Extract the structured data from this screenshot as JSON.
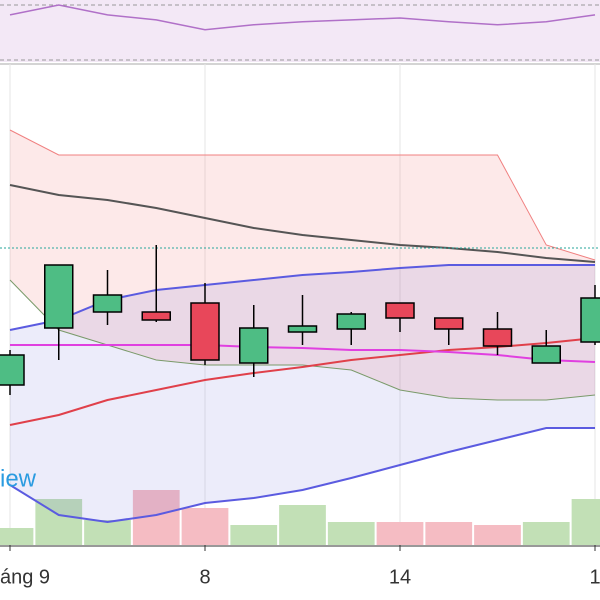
{
  "chart_data": {
    "type": "candlestick",
    "categories": [
      "áng 9",
      null,
      null,
      null,
      "8",
      null,
      null,
      null,
      "14",
      null,
      null,
      null,
      "1"
    ],
    "watermark": "iew",
    "ylim": [
      0,
      480
    ],
    "open": [
      160,
      217,
      233,
      233,
      242,
      182,
      213,
      216,
      242,
      227,
      216,
      182,
      203
    ],
    "close": [
      190,
      280,
      250,
      225,
      185,
      217,
      219,
      231,
      227,
      216,
      199,
      199,
      247
    ],
    "high": [
      195,
      280,
      275,
      300,
      262,
      240,
      250,
      233,
      242,
      227,
      233,
      215,
      260
    ],
    "low": [
      150,
      185,
      220,
      223,
      180,
      168,
      200,
      200,
      213,
      200,
      190,
      182,
      200
    ],
    "volume": [
      17,
      46,
      25,
      55,
      37,
      20,
      40,
      23,
      23,
      23,
      20,
      23,
      46
    ],
    "up_color": "#4ebd84",
    "down_color": "#e8475a",
    "volume_up_color": "#c2e0b6",
    "volume_down_color": "#f5bcc3",
    "hline": 297,
    "hline_color": "#26a69a",
    "bands": [
      {
        "color": "#5b5be0",
        "values": [
          215,
          225,
          245,
          255,
          260,
          265,
          270,
          273,
          277,
          280,
          280,
          280,
          280
        ]
      },
      {
        "color": "#5b5be0",
        "values": [
          60,
          30,
          23,
          30,
          42,
          47,
          55,
          67,
          80,
          93,
          105,
          117,
          117
        ]
      }
    ],
    "band_fill": "rgba(110,110,220,0.13)",
    "cloud": [
      {
        "color": "#f08080",
        "values": [
          415,
          390,
          390,
          390,
          390,
          390,
          390,
          390,
          390,
          390,
          390,
          300,
          285
        ]
      },
      {
        "color": "#7a9a6a",
        "values": [
          265,
          215,
          200,
          185,
          180,
          180,
          180,
          175,
          155,
          147,
          145,
          145,
          150
        ]
      }
    ],
    "cloud_fill": "rgba(240,110,110,0.15)",
    "series": [
      {
        "color": "#e0404a",
        "values": [
          120,
          130,
          145,
          155,
          165,
          172,
          178,
          185,
          190,
          195,
          198,
          202,
          207
        ]
      },
      {
        "color": "#e040e0",
        "values": [
          200,
          200,
          200,
          200,
          200,
          198,
          197,
          195,
          195,
          193,
          190,
          185,
          183
        ]
      },
      {
        "color": "#555555",
        "values": [
          360,
          350,
          345,
          337,
          327,
          317,
          310,
          305,
          300,
          297,
          293,
          287,
          283
        ]
      }
    ],
    "oscillator": {
      "ylim": [
        0,
        100
      ],
      "color": "#b070c8",
      "values": [
        76,
        92,
        76,
        68,
        52,
        60,
        65,
        68,
        71,
        65,
        60,
        65,
        76
      ]
    }
  }
}
